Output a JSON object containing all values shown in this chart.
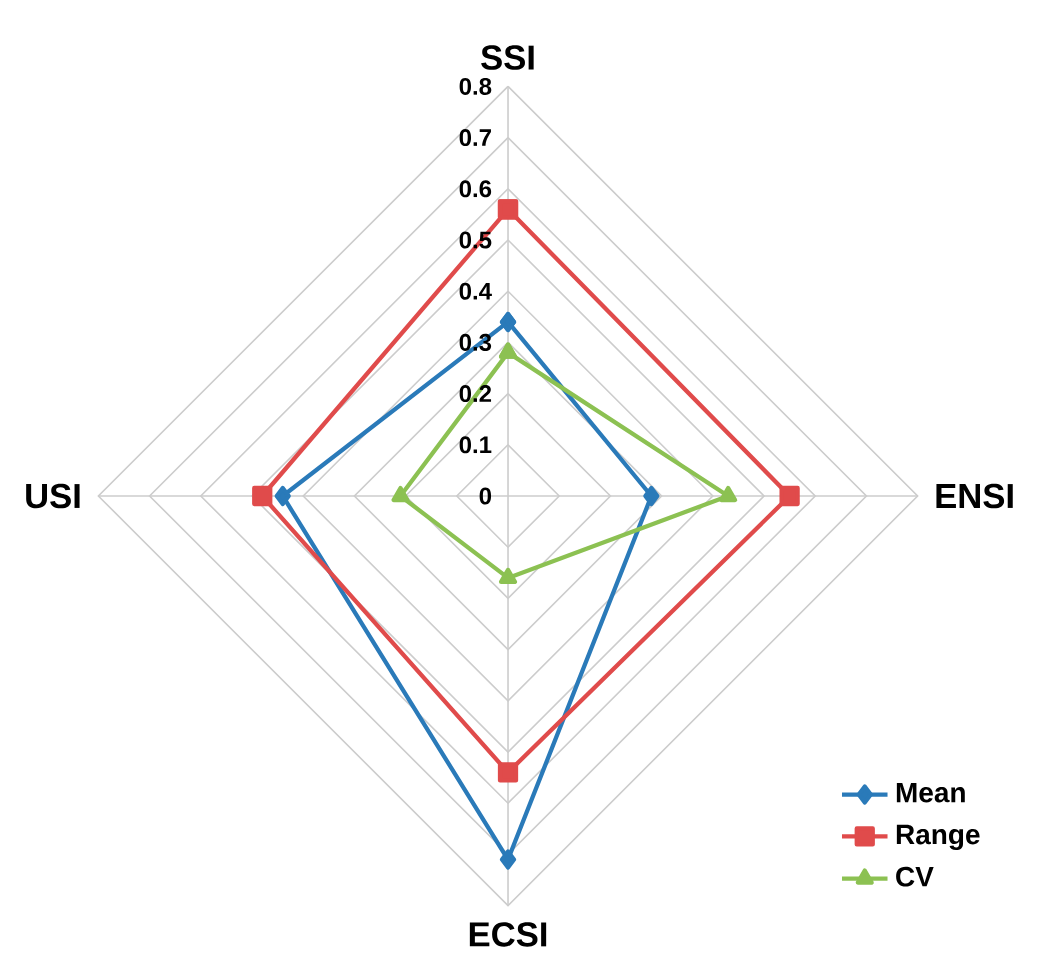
{
  "chart_data": {
    "type": "radar",
    "categories": [
      "SSI",
      "ENSI",
      "ECSI",
      "USI"
    ],
    "ylim": [
      0,
      0.8
    ],
    "yticks": [
      {
        "value": 0,
        "label": "0"
      },
      0.1,
      0.2,
      0.3,
      0.4,
      0.5,
      0.6,
      0.7,
      0.8
    ],
    "grid": true,
    "legend": "bottom right",
    "series": [
      {
        "name": "Mean",
        "color": "#2a7ab9",
        "marker": "diamond",
        "values": [
          0.34,
          0.28,
          0.71,
          0.44
        ]
      },
      {
        "name": "Range",
        "color": "#e04b4b",
        "marker": "square",
        "values": [
          0.56,
          0.55,
          0.54,
          0.48
        ]
      },
      {
        "name": "CV",
        "color": "#8cc152",
        "marker": "triangle",
        "values": [
          0.28,
          0.43,
          0.16,
          0.21
        ]
      }
    ]
  }
}
